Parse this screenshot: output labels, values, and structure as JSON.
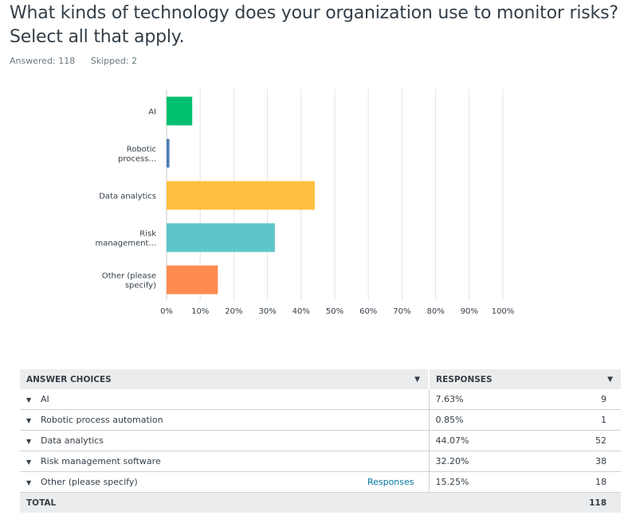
{
  "question": "What kinds of technology does your organization use to monitor risks? Select all that apply.",
  "stats": {
    "answered": "Answered: 118",
    "skipped": "Skipped: 2"
  },
  "chart_data": {
    "type": "bar",
    "orientation": "horizontal",
    "categories": [
      [
        "AI"
      ],
      [
        "Robotic",
        "process..."
      ],
      [
        "Data analytics"
      ],
      [
        "Risk",
        "management..."
      ],
      [
        "Other (please",
        "specify)"
      ]
    ],
    "values": [
      7.63,
      0.85,
      44.07,
      32.2,
      15.25
    ],
    "colors": [
      "#00bf6f",
      "#507cb6",
      "#ffbf3f",
      "#5ec6ca",
      "#ff8b4f"
    ],
    "xlim": [
      0,
      100
    ],
    "xticks": [
      "0%",
      "10%",
      "20%",
      "30%",
      "40%",
      "50%",
      "60%",
      "70%",
      "80%",
      "90%",
      "100%"
    ],
    "grid": true
  },
  "table": {
    "header_answer": "ANSWER CHOICES",
    "header_responses": "RESPONSES",
    "rows": [
      {
        "label": "AI",
        "pct": "7.63%",
        "count": "9",
        "link": ""
      },
      {
        "label": "Robotic process automation",
        "pct": "0.85%",
        "count": "1",
        "link": ""
      },
      {
        "label": "Data analytics",
        "pct": "44.07%",
        "count": "52",
        "link": ""
      },
      {
        "label": "Risk management software",
        "pct": "32.20%",
        "count": "38",
        "link": ""
      },
      {
        "label": "Other (please specify)",
        "pct": "15.25%",
        "count": "18",
        "link": "Responses"
      }
    ],
    "total_label": "TOTAL",
    "total_count": "118"
  }
}
